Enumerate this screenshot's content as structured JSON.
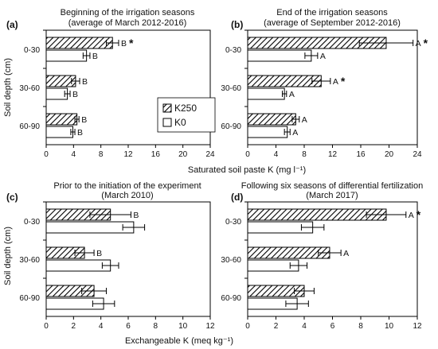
{
  "figure": {
    "shared_ylabel": "Soil depth (cm)",
    "top_xlabel": "Saturated soil paste K (mg l⁻¹)",
    "bottom_xlabel": "Exchangeable K (meq kg⁻¹)",
    "legend": [
      "K250",
      "K0"
    ],
    "colors": {
      "K250": "hatched-black",
      "K0": "#ffffff",
      "axis": "#000000"
    }
  },
  "chart_data": [
    {
      "panel": "a",
      "type": "bar",
      "orientation": "horizontal",
      "title": "Beginning of the irrigation seasons",
      "subtitle": "(average of March 2012-2016)",
      "categories": [
        "0-30",
        "30-60",
        "60-90"
      ],
      "ylabel": "Soil depth (cm)",
      "xlabel": "Saturated soil paste K (mg l⁻¹)",
      "xlim": [
        0,
        24
      ],
      "xticks": [
        "0",
        "4",
        "8",
        "12",
        "16",
        "20",
        "24"
      ],
      "series": [
        {
          "name": "K250",
          "values": [
            9.7,
            4.3,
            4.5
          ],
          "errors": [
            0.9,
            0.6,
            0.3
          ],
          "labels": [
            "B",
            "B",
            "B"
          ],
          "stars": [
            true,
            false,
            false
          ]
        },
        {
          "name": "K0",
          "values": [
            5.9,
            3.1,
            3.9
          ],
          "errors": [
            0.5,
            0.4,
            0.3
          ],
          "labels": [
            "B",
            "B",
            "B"
          ],
          "stars": [
            false,
            false,
            false
          ]
        }
      ]
    },
    {
      "panel": "b",
      "type": "bar",
      "orientation": "horizontal",
      "title": "End of the irrigation seasons",
      "subtitle": "(average of September 2012-2016)",
      "categories": [
        "0-30",
        "30-60",
        "60-90"
      ],
      "xlim": [
        0,
        24
      ],
      "xticks": [
        "0",
        "4",
        "8",
        "12",
        "16",
        "20",
        "24"
      ],
      "series": [
        {
          "name": "K250",
          "values": [
            19.6,
            10.4,
            6.8
          ],
          "errors": [
            3.8,
            1.3,
            0.5
          ],
          "labels": [
            "A",
            "A",
            "A"
          ],
          "stars": [
            true,
            true,
            false
          ]
        },
        {
          "name": "K0",
          "values": [
            9.0,
            5.2,
            5.6
          ],
          "errors": [
            0.9,
            0.3,
            0.4
          ],
          "labels": [
            "A",
            "A",
            "A"
          ],
          "stars": [
            false,
            false,
            false
          ]
        }
      ]
    },
    {
      "panel": "c",
      "type": "bar",
      "orientation": "horizontal",
      "title": "Prior to the initiation of the experiment",
      "subtitle": "(March 2010)",
      "categories": [
        "0-30",
        "30-60",
        "60-90"
      ],
      "ylabel": "Soil depth (cm)",
      "xlabel": "Exchangeable K (meq kg⁻¹)",
      "xlim": [
        0,
        12
      ],
      "xticks": [
        "0",
        "2",
        "4",
        "6",
        "8",
        "10",
        "12"
      ],
      "series": [
        {
          "name": "K250",
          "values": [
            4.7,
            2.8,
            3.5
          ],
          "errors": [
            1.5,
            0.7,
            0.9
          ],
          "labels": [
            "B",
            "B",
            ""
          ],
          "stars": [
            false,
            false,
            false
          ]
        },
        {
          "name": "K0",
          "values": [
            6.4,
            4.7,
            4.2
          ],
          "errors": [
            0.8,
            0.6,
            0.8
          ],
          "labels": [
            "",
            "",
            ""
          ],
          "stars": [
            false,
            false,
            false
          ]
        }
      ]
    },
    {
      "panel": "d",
      "type": "bar",
      "orientation": "horizontal",
      "title": "Following six seasons of differential fertilization",
      "subtitle": "(March 2017)",
      "categories": [
        "0-30",
        "30-60",
        "60-90"
      ],
      "xlim": [
        0,
        12
      ],
      "xticks": [
        "0",
        "2",
        "4",
        "6",
        "8",
        "10",
        "12"
      ],
      "series": [
        {
          "name": "K250",
          "values": [
            9.8,
            5.8,
            4.0
          ],
          "errors": [
            1.4,
            0.8,
            0.7
          ],
          "labels": [
            "A",
            "A",
            ""
          ],
          "stars": [
            true,
            false,
            false
          ]
        },
        {
          "name": "K0",
          "values": [
            4.6,
            3.6,
            3.5
          ],
          "errors": [
            0.8,
            0.6,
            0.8
          ],
          "labels": [
            "",
            "",
            ""
          ],
          "stars": [
            false,
            false,
            false
          ]
        }
      ]
    }
  ]
}
